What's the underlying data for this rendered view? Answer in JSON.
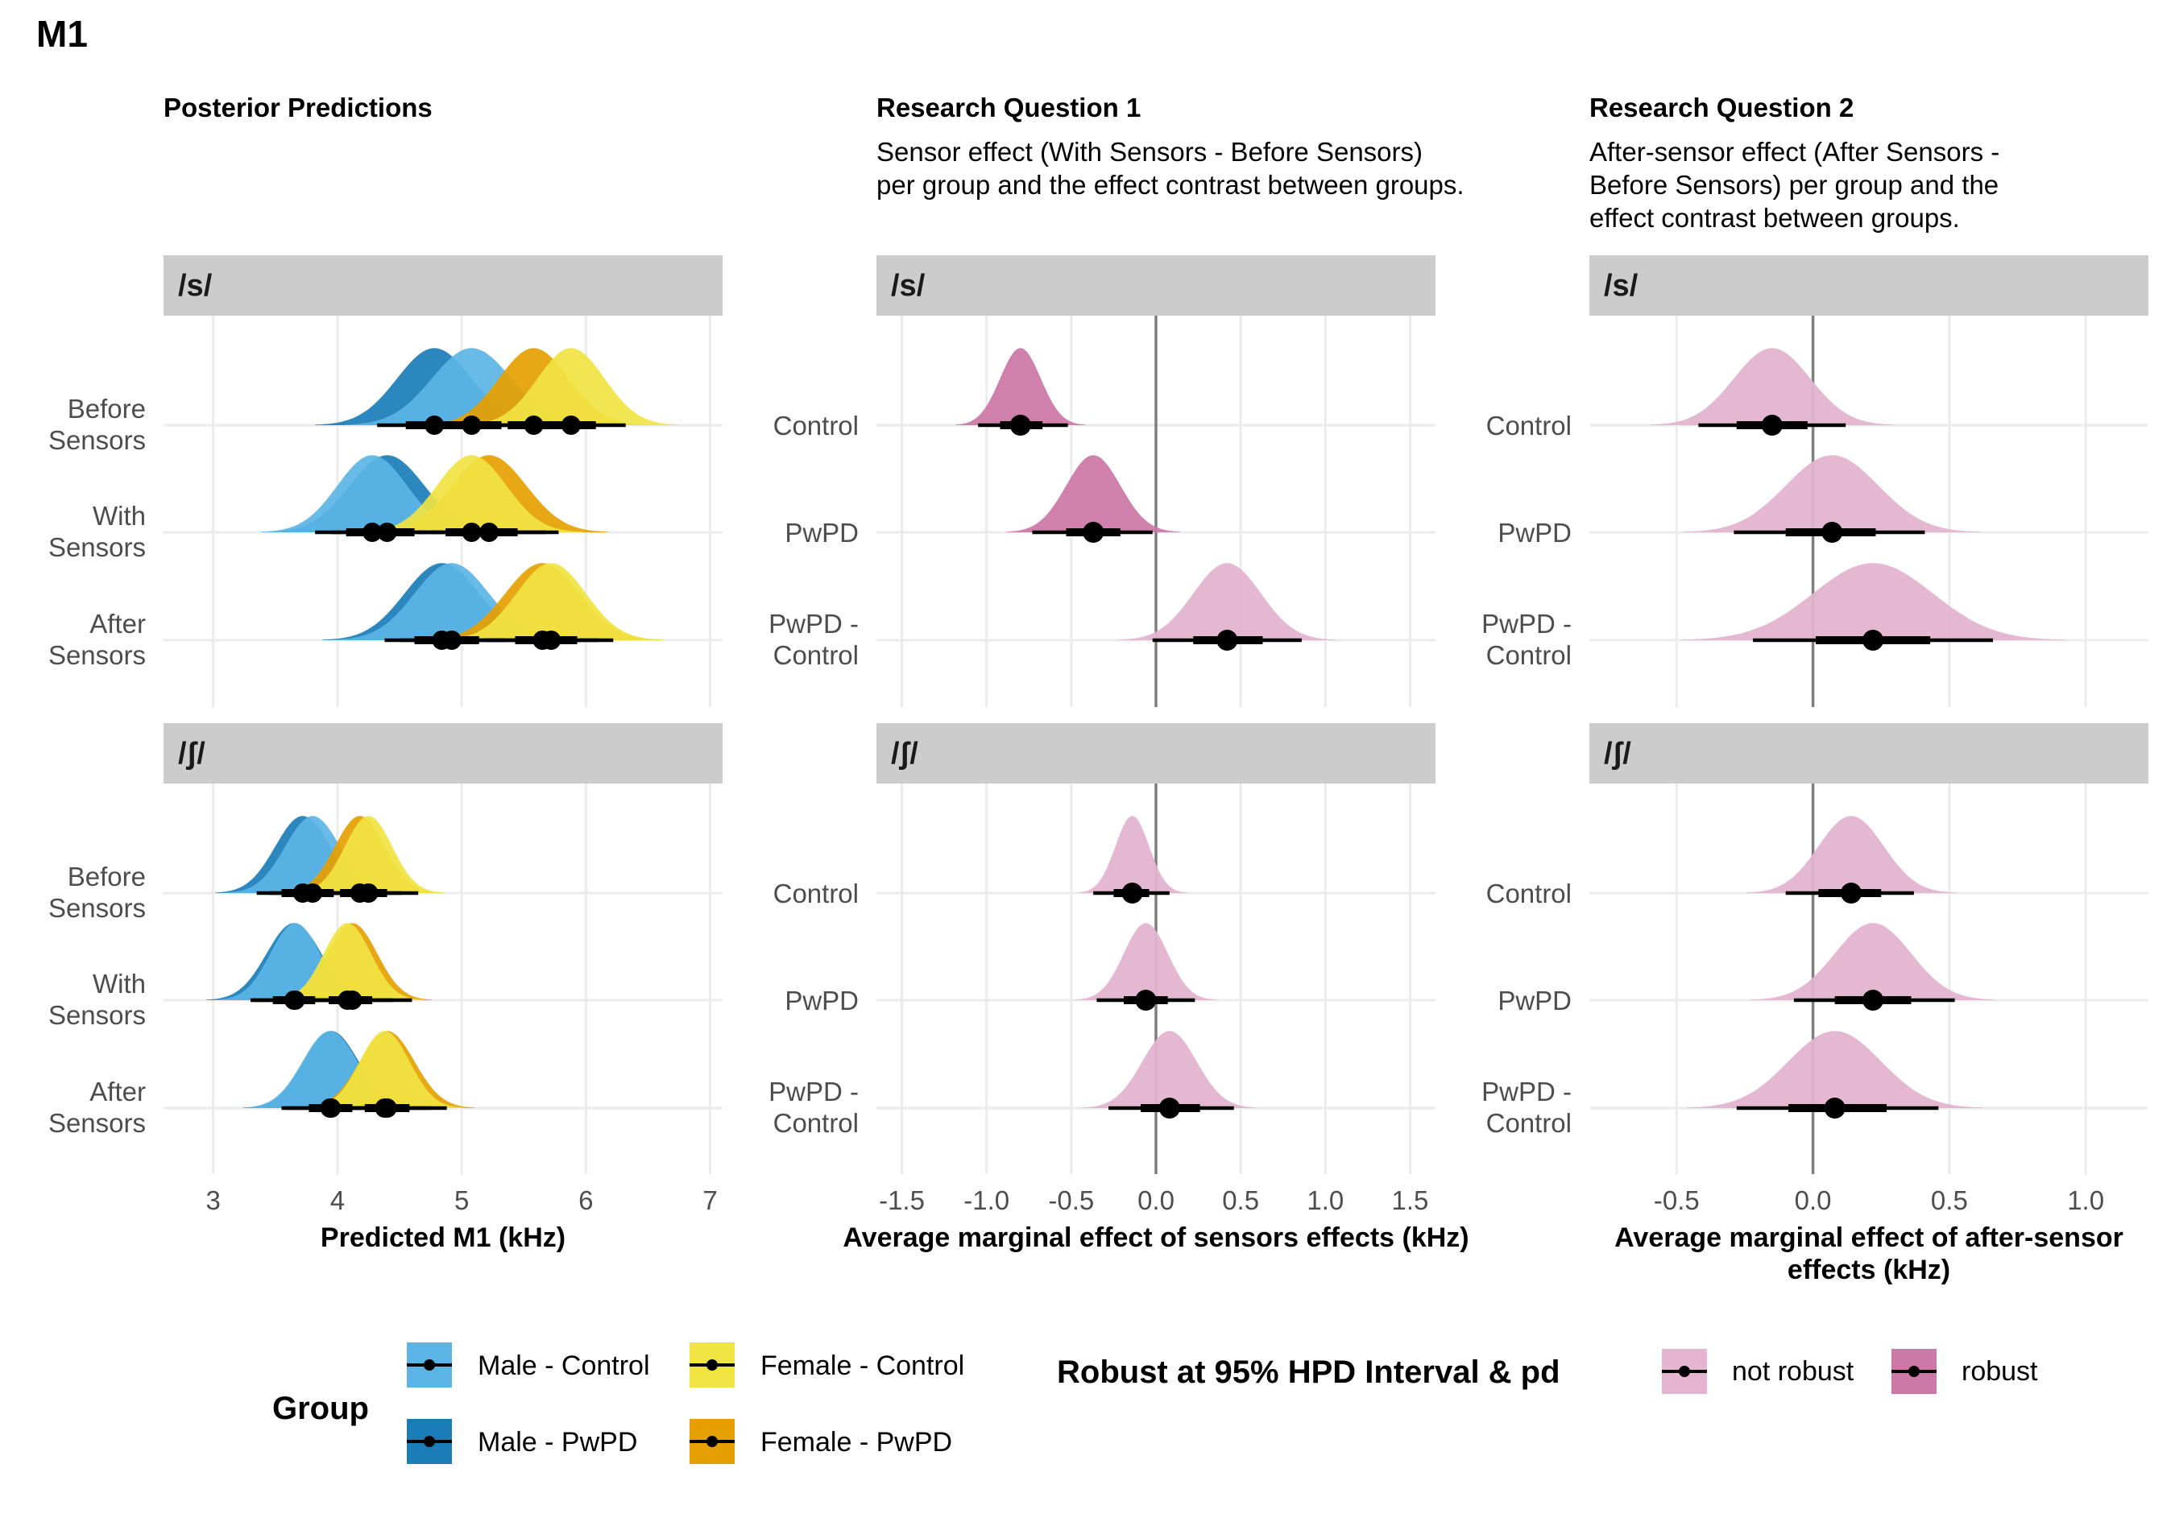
{
  "figure": {
    "main_title": "M1",
    "columns": [
      {
        "title": "Posterior Predictions",
        "subtitle": []
      },
      {
        "title": "Research Question 1",
        "subtitle": [
          "Sensor effect (With Sensors - Before Sensors)",
          "per group and the effect contrast between groups."
        ]
      },
      {
        "title": "Research Question 2",
        "subtitle": [
          "After-sensor effect (After Sensors -",
          "Before Sensors) per group and the",
          "effect contrast between groups."
        ]
      }
    ],
    "strips": [
      "/s/",
      "/ʃ/"
    ]
  },
  "colors": {
    "male_control": "#5BB4E5",
    "male_pwpd": "#1A7DB8",
    "female_control": "#F0E442",
    "female_pwpd": "#E69F00",
    "robust": "#CC79A7",
    "not_robust": "#E4B4D0",
    "strip_bg": "#CCCCCC",
    "grid": "#EBEBEB",
    "zero_line": "#7F7F7F"
  },
  "legends": {
    "group": {
      "title": "Group",
      "items": [
        "Male - Control",
        "Male - PwPD",
        "Female - Control",
        "Female - PwPD"
      ]
    },
    "robust": {
      "title": "Robust at 95% HPD Interval & pd",
      "items": [
        "not robust",
        "robust"
      ]
    }
  },
  "chart_data": [
    {
      "type": "halfeye",
      "panel": "Posterior Predictions",
      "xlabel": "Predicted M1 (kHz)",
      "xlim": [
        2.6,
        7.1
      ],
      "xticks": [
        3,
        4,
        5,
        6,
        7
      ],
      "ycategories": [
        [
          "Before",
          "Sensors"
        ],
        [
          "With",
          "Sensors"
        ],
        [
          "After",
          "Sensors"
        ]
      ],
      "facets": [
        {
          "strip": "/s/",
          "rows": [
            {
              "row": "Before Sensors",
              "series": [
                {
                  "name": "Male - PwPD",
                  "median": 4.78,
                  "sd": 0.3,
                  "i66": [
                    4.55,
                    5.02
                  ],
                  "i95": [
                    4.32,
                    5.24
                  ]
                },
                {
                  "name": "Male - Control",
                  "median": 5.08,
                  "sd": 0.32,
                  "i66": [
                    4.85,
                    5.32
                  ],
                  "i95": [
                    4.62,
                    5.55
                  ]
                },
                {
                  "name": "Female - PwPD",
                  "median": 5.58,
                  "sd": 0.28,
                  "i66": [
                    5.37,
                    5.8
                  ],
                  "i95": [
                    5.05,
                    6.02
                  ]
                },
                {
                  "name": "Female - Control",
                  "median": 5.88,
                  "sd": 0.27,
                  "i66": [
                    5.66,
                    6.08
                  ],
                  "i95": [
                    5.4,
                    6.32
                  ]
                }
              ]
            },
            {
              "row": "With Sensors",
              "series": [
                {
                  "name": "Male - PwPD",
                  "median": 4.4,
                  "sd": 0.3,
                  "i66": [
                    4.17,
                    4.62
                  ],
                  "i95": [
                    3.95,
                    4.85
                  ]
                },
                {
                  "name": "Male - Control",
                  "median": 4.28,
                  "sd": 0.28,
                  "i66": [
                    4.07,
                    4.5
                  ],
                  "i95": [
                    3.82,
                    4.72
                  ]
                },
                {
                  "name": "Female - PwPD",
                  "median": 5.22,
                  "sd": 0.3,
                  "i66": [
                    4.99,
                    5.45
                  ],
                  "i95": [
                    4.75,
                    5.68
                  ]
                },
                {
                  "name": "Female - Control",
                  "median": 5.08,
                  "sd": 0.28,
                  "i66": [
                    4.87,
                    5.3
                  ],
                  "i95": [
                    4.65,
                    5.78
                  ]
                }
              ]
            },
            {
              "row": "After Sensors",
              "series": [
                {
                  "name": "Male - PwPD",
                  "median": 4.84,
                  "sd": 0.3,
                  "i66": [
                    4.62,
                    5.07
                  ],
                  "i95": [
                    4.38,
                    5.3
                  ]
                },
                {
                  "name": "Male - Control",
                  "median": 4.92,
                  "sd": 0.3,
                  "i66": [
                    4.7,
                    5.14
                  ],
                  "i95": [
                    4.5,
                    5.35
                  ]
                },
                {
                  "name": "Female - PwPD",
                  "median": 5.65,
                  "sd": 0.3,
                  "i66": [
                    5.43,
                    5.88
                  ],
                  "i95": [
                    5.2,
                    6.1
                  ]
                },
                {
                  "name": "Female - Control",
                  "median": 5.72,
                  "sd": 0.28,
                  "i66": [
                    5.5,
                    5.93
                  ],
                  "i95": [
                    5.28,
                    6.22
                  ]
                }
              ]
            }
          ]
        },
        {
          "strip": "/ʃ/",
          "rows": [
            {
              "row": "Before Sensors",
              "series": [
                {
                  "name": "Male - PwPD",
                  "median": 3.72,
                  "sd": 0.22,
                  "i66": [
                    3.55,
                    3.9
                  ],
                  "i95": [
                    3.35,
                    4.1
                  ]
                },
                {
                  "name": "Male - Control",
                  "median": 3.8,
                  "sd": 0.22,
                  "i66": [
                    3.63,
                    3.97
                  ],
                  "i95": [
                    3.45,
                    4.15
                  ]
                },
                {
                  "name": "Female - PwPD",
                  "median": 4.18,
                  "sd": 0.2,
                  "i66": [
                    4.02,
                    4.35
                  ],
                  "i95": [
                    3.85,
                    4.52
                  ]
                },
                {
                  "name": "Female - Control",
                  "median": 4.25,
                  "sd": 0.19,
                  "i66": [
                    4.1,
                    4.4
                  ],
                  "i95": [
                    3.92,
                    4.65
                  ]
                }
              ]
            },
            {
              "row": "With Sensors",
              "series": [
                {
                  "name": "Male - PwPD",
                  "median": 3.65,
                  "sd": 0.22,
                  "i66": [
                    3.48,
                    3.82
                  ],
                  "i95": [
                    3.3,
                    4.0
                  ]
                },
                {
                  "name": "Male - Control",
                  "median": 3.66,
                  "sd": 0.2,
                  "i66": [
                    3.5,
                    3.82
                  ],
                  "i95": [
                    3.32,
                    3.98
                  ]
                },
                {
                  "name": "Female - PwPD",
                  "median": 4.12,
                  "sd": 0.2,
                  "i66": [
                    3.96,
                    4.28
                  ],
                  "i95": [
                    3.8,
                    4.45
                  ]
                },
                {
                  "name": "Female - Control",
                  "median": 4.08,
                  "sd": 0.19,
                  "i66": [
                    3.93,
                    4.24
                  ],
                  "i95": [
                    3.78,
                    4.6
                  ]
                }
              ]
            },
            {
              "row": "After Sensors",
              "series": [
                {
                  "name": "Male - PwPD",
                  "median": 3.95,
                  "sd": 0.22,
                  "i66": [
                    3.78,
                    4.12
                  ],
                  "i95": [
                    3.58,
                    4.3
                  ]
                },
                {
                  "name": "Male - Control",
                  "median": 3.94,
                  "sd": 0.22,
                  "i66": [
                    3.77,
                    4.11
                  ],
                  "i95": [
                    3.55,
                    4.32
                  ]
                },
                {
                  "name": "Female - PwPD",
                  "median": 4.4,
                  "sd": 0.22,
                  "i66": [
                    4.23,
                    4.58
                  ],
                  "i95": [
                    4.05,
                    4.75
                  ]
                },
                {
                  "name": "Female - Control",
                  "median": 4.38,
                  "sd": 0.2,
                  "i66": [
                    4.22,
                    4.55
                  ],
                  "i95": [
                    4.05,
                    4.88
                  ]
                }
              ]
            }
          ]
        }
      ]
    },
    {
      "type": "halfeye",
      "panel": "Research Question 1",
      "xlabel": "Average marginal effect of sensors effects (kHz)",
      "xlim": [
        -1.65,
        1.65
      ],
      "xticks": [
        -1.5,
        -1.0,
        -0.5,
        0.0,
        0.5,
        1.0,
        1.5
      ],
      "xticklabels": [
        "-1.5",
        "-1.0",
        "-0.5",
        "0.0",
        "0.5",
        "1.0",
        "1.5"
      ],
      "reference_line": 0,
      "ycategories": [
        [
          "Control"
        ],
        [
          "PwPD"
        ],
        [
          "PwPD -",
          "Control"
        ]
      ],
      "facets": [
        {
          "strip": "/s/",
          "rows": [
            {
              "row": "Control",
              "median": -0.8,
              "sd": 0.12,
              "i66": [
                -0.92,
                -0.67
              ],
              "i95": [
                -1.05,
                -0.52
              ],
              "robust": true
            },
            {
              "row": "PwPD",
              "median": -0.37,
              "sd": 0.16,
              "i66": [
                -0.53,
                -0.21
              ],
              "i95": [
                -0.73,
                -0.02
              ],
              "robust": true
            },
            {
              "row": "PwPD - Control",
              "median": 0.42,
              "sd": 0.2,
              "i66": [
                0.22,
                0.63
              ],
              "i95": [
                -0.02,
                0.86
              ],
              "robust": false
            }
          ]
        },
        {
          "strip": "/ʃ/",
          "rows": [
            {
              "row": "Control",
              "median": -0.14,
              "sd": 0.1,
              "i66": [
                -0.25,
                -0.04
              ],
              "i95": [
                -0.37,
                0.08
              ],
              "robust": false
            },
            {
              "row": "PwPD",
              "median": -0.06,
              "sd": 0.13,
              "i66": [
                -0.19,
                0.07
              ],
              "i95": [
                -0.35,
                0.23
              ],
              "robust": false
            },
            {
              "row": "PwPD - Control",
              "median": 0.08,
              "sd": 0.16,
              "i66": [
                -0.09,
                0.26
              ],
              "i95": [
                -0.28,
                0.46
              ],
              "robust": false
            }
          ]
        }
      ]
    },
    {
      "type": "halfeye",
      "panel": "Research Question 2",
      "xlabel": [
        "Average marginal effect of after-sensor",
        "effects (kHz)"
      ],
      "xlim": [
        -0.82,
        1.23
      ],
      "xticks": [
        -0.5,
        0.0,
        0.5,
        1.0
      ],
      "xticklabels": [
        "-0.5",
        "0.0",
        "0.5",
        "1.0"
      ],
      "reference_line": 0,
      "ycategories": [
        [
          "Control"
        ],
        [
          "PwPD"
        ],
        [
          "PwPD -",
          "Control"
        ]
      ],
      "facets": [
        {
          "strip": "/s/",
          "rows": [
            {
              "row": "Control",
              "median": -0.15,
              "sd": 0.14,
              "i66": [
                -0.28,
                -0.02
              ],
              "i95": [
                -0.42,
                0.12
              ],
              "robust": false
            },
            {
              "row": "PwPD",
              "median": 0.07,
              "sd": 0.17,
              "i66": [
                -0.1,
                0.23
              ],
              "i95": [
                -0.29,
                0.41
              ],
              "robust": false
            },
            {
              "row": "PwPD - Control",
              "median": 0.22,
              "sd": 0.22,
              "i66": [
                0.01,
                0.43
              ],
              "i95": [
                -0.22,
                0.66
              ],
              "robust": false
            }
          ]
        },
        {
          "strip": "/ʃ/",
          "rows": [
            {
              "row": "Control",
              "median": 0.14,
              "sd": 0.12,
              "i66": [
                0.02,
                0.25
              ],
              "i95": [
                -0.1,
                0.37
              ],
              "robust": false
            },
            {
              "row": "PwPD",
              "median": 0.22,
              "sd": 0.14,
              "i66": [
                0.08,
                0.36
              ],
              "i95": [
                -0.07,
                0.52
              ],
              "robust": false
            },
            {
              "row": "PwPD - Control",
              "median": 0.08,
              "sd": 0.17,
              "i66": [
                -0.09,
                0.27
              ],
              "i95": [
                -0.28,
                0.46
              ],
              "robust": false
            }
          ]
        }
      ]
    }
  ]
}
